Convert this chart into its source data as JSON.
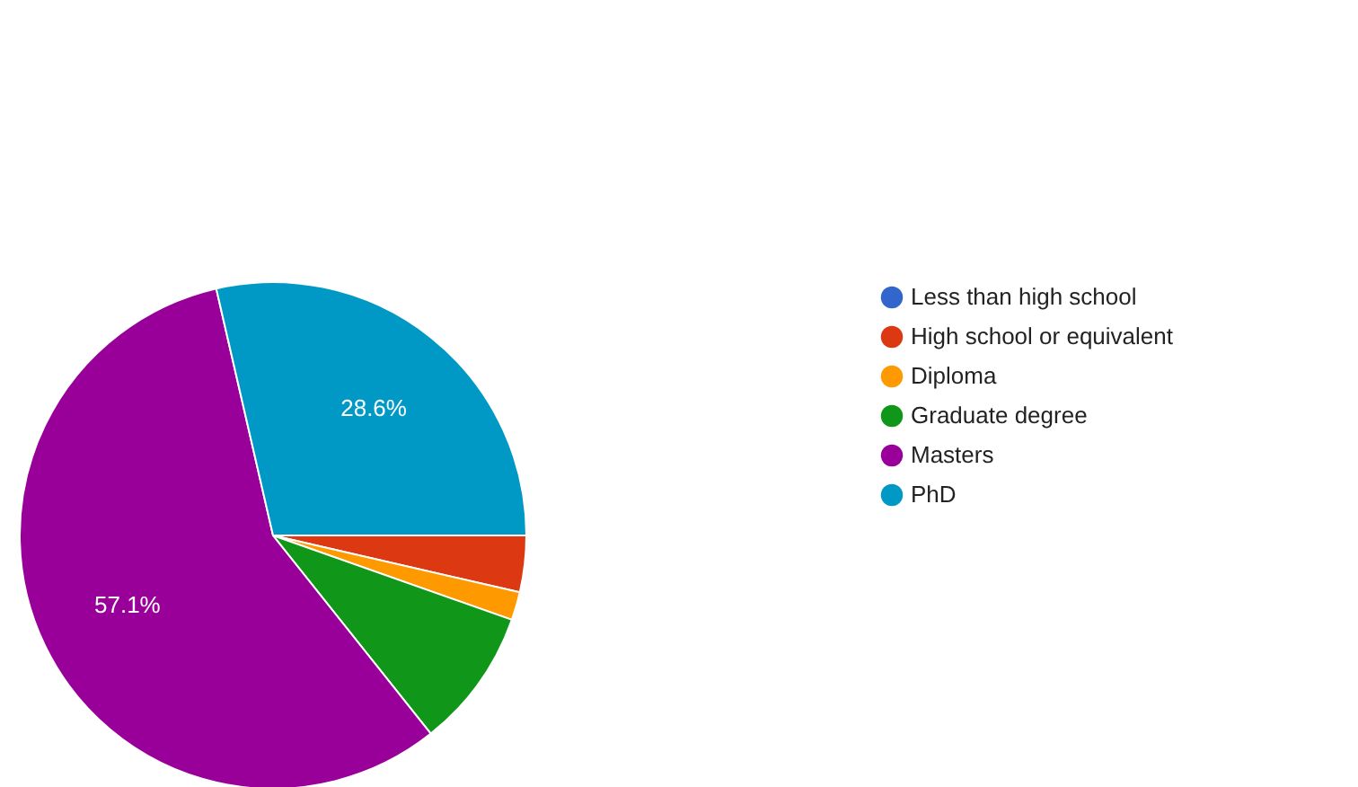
{
  "chart_data": {
    "type": "pie",
    "categories": [
      "Less than high school",
      "High school or equivalent",
      "Diploma",
      "Graduate degree",
      "Masters",
      "PhD"
    ],
    "values": [
      0,
      3.6,
      1.8,
      8.9,
      57.1,
      28.6
    ],
    "colors": [
      "#3366cc",
      "#dc3912",
      "#ff9900",
      "#109618",
      "#990099",
      "#0099c6"
    ],
    "value_labels": [
      null,
      null,
      null,
      null,
      "57.1%",
      "28.6%"
    ],
    "legend": "right"
  }
}
